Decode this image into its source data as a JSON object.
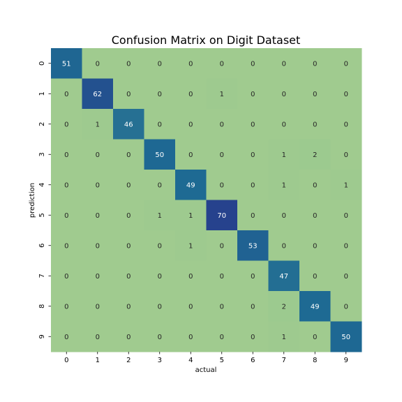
{
  "chart_data": {
    "type": "heatmap",
    "title": "Confusion Matrix on Digit Dataset",
    "xlabel": "actual",
    "ylabel": "prediction",
    "x_categories": [
      "0",
      "1",
      "2",
      "3",
      "4",
      "5",
      "6",
      "7",
      "8",
      "9"
    ],
    "y_categories": [
      "0",
      "1",
      "2",
      "3",
      "4",
      "5",
      "6",
      "7",
      "8",
      "9"
    ],
    "values": [
      [
        51,
        0,
        0,
        0,
        0,
        0,
        0,
        0,
        0,
        0
      ],
      [
        0,
        62,
        0,
        0,
        0,
        1,
        0,
        0,
        0,
        0
      ],
      [
        0,
        1,
        46,
        0,
        0,
        0,
        0,
        0,
        0,
        0
      ],
      [
        0,
        0,
        0,
        50,
        0,
        0,
        0,
        1,
        2,
        0
      ],
      [
        0,
        0,
        0,
        0,
        49,
        0,
        0,
        1,
        0,
        1
      ],
      [
        0,
        0,
        0,
        1,
        1,
        70,
        0,
        0,
        0,
        0
      ],
      [
        0,
        0,
        0,
        0,
        1,
        0,
        53,
        0,
        0,
        0
      ],
      [
        0,
        0,
        0,
        0,
        0,
        0,
        0,
        47,
        0,
        0
      ],
      [
        0,
        0,
        0,
        0,
        0,
        0,
        0,
        2,
        49,
        0
      ],
      [
        0,
        0,
        0,
        0,
        0,
        0,
        0,
        1,
        0,
        50
      ]
    ],
    "colormap": "YlGnBu",
    "colorbar": false,
    "color_stops": [
      "#a0cb8f",
      "#98c88e",
      "#1e6a93",
      "#26428d"
    ],
    "grid": false
  }
}
